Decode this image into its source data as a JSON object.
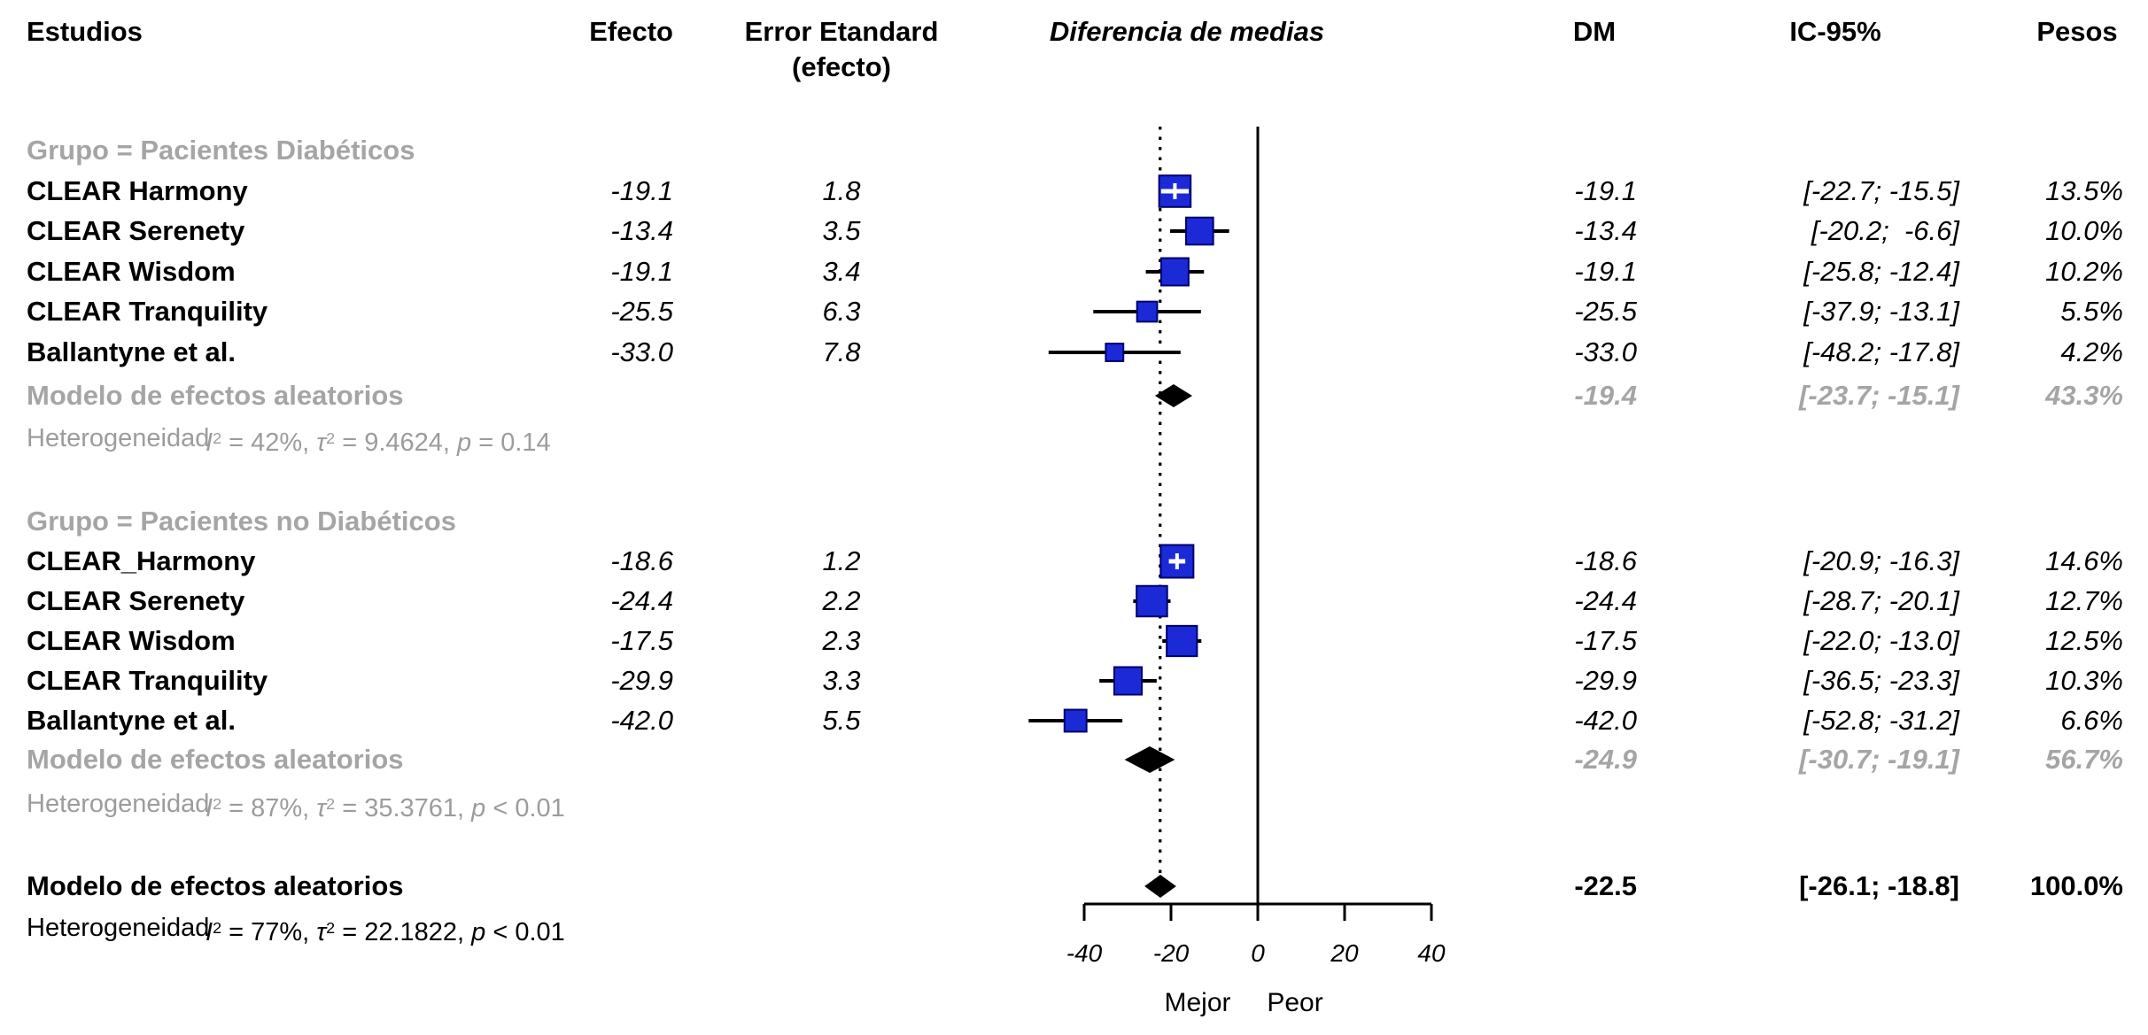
{
  "header": {
    "estudios": "Estudios",
    "efecto": "Efecto",
    "error_line1": "Error Etandard",
    "error_line2": "(efecto)",
    "diferencia": "Diferencia de medias",
    "dm": "DM",
    "ic": "IC-95%",
    "pesos": "Pesos"
  },
  "colors": {
    "square_fill": "#1B2AD6",
    "square_border": "#00006E",
    "summary_gray": "#a5a5a5",
    "het_gray": "#9c9c9c",
    "black": "#000000",
    "white": "#ffffff"
  },
  "chart_data": {
    "type": "forest",
    "x_axis": {
      "ticks": [
        -40,
        -20,
        0,
        20,
        40
      ],
      "tick_labels": [
        "-40",
        "-20",
        "0",
        "20",
        "40"
      ],
      "label_left": "Mejor",
      "label_right": "Peor",
      "range": [
        -40,
        40
      ]
    },
    "reference_line": 0,
    "dashed_line_at": -22.5,
    "groups": [
      {
        "label": "Grupo = Pacientes Diabéticos",
        "studies": [
          {
            "name": "CLEAR Harmony",
            "effect": "-19.1",
            "se": "1.8",
            "dm": -19.1,
            "ci_low": -22.7,
            "ci_high": -15.5,
            "dm_text": "-19.1",
            "ci_text": "[-22.7; -15.5]",
            "weight": 13.5,
            "weight_text": "13.5%"
          },
          {
            "name": "CLEAR Serenety",
            "effect": "-13.4",
            "se": "3.5",
            "dm": -13.4,
            "ci_low": -20.2,
            "ci_high": -6.6,
            "dm_text": "-13.4",
            "ci_text": "[-20.2;  -6.6]",
            "weight": 10.0,
            "weight_text": "10.0%"
          },
          {
            "name": "CLEAR Wisdom",
            "effect": "-19.1",
            "se": "3.4",
            "dm": -19.1,
            "ci_low": -25.8,
            "ci_high": -12.4,
            "dm_text": "-19.1",
            "ci_text": "[-25.8; -12.4]",
            "weight": 10.2,
            "weight_text": "10.2%"
          },
          {
            "name": "CLEAR Tranquility",
            "effect": "-25.5",
            "se": "6.3",
            "dm": -25.5,
            "ci_low": -37.9,
            "ci_high": -13.1,
            "dm_text": "-25.5",
            "ci_text": "[-37.9; -13.1]",
            "weight": 5.5,
            "weight_text": "5.5%"
          },
          {
            "name": "Ballantyne et al.",
            "effect": "-33.0",
            "se": "7.8",
            "dm": -33.0,
            "ci_low": -48.2,
            "ci_high": -17.8,
            "dm_text": "-33.0",
            "ci_text": "[-48.2; -17.8]",
            "weight": 4.2,
            "weight_text": "4.2%"
          }
        ],
        "summary": {
          "label": "Modelo de efectos aleatorios",
          "dm": -19.4,
          "ci_low": -23.7,
          "ci_high": -15.1,
          "dm_text": "-19.4",
          "ci_text": "[-23.7; -15.1]",
          "weight_text": "43.3%"
        },
        "heterogeneity": {
          "label": "Heterogeneidad",
          "formula": [
            {
              "t": "I",
              "s": "i"
            },
            {
              "t": "2",
              "s": "sup"
            },
            {
              "t": " = 42%, ",
              "s": "n"
            },
            {
              "t": "τ",
              "s": "i"
            },
            {
              "t": "2",
              "s": "sup"
            },
            {
              "t": " = 9.4624, ",
              "s": "n"
            },
            {
              "t": "p",
              "s": "i"
            },
            {
              "t": " = 0.14",
              "s": "n"
            }
          ]
        }
      },
      {
        "label": "Grupo = Pacientes no Diabéticos",
        "studies": [
          {
            "name": "CLEAR_Harmony",
            "effect": "-18.6",
            "se": "1.2",
            "dm": -18.6,
            "ci_low": -20.9,
            "ci_high": -16.3,
            "dm_text": "-18.6",
            "ci_text": "[-20.9; -16.3]",
            "weight": 14.6,
            "weight_text": "14.6%"
          },
          {
            "name": "CLEAR Serenety",
            "effect": "-24.4",
            "se": "2.2",
            "dm": -24.4,
            "ci_low": -28.7,
            "ci_high": -20.1,
            "dm_text": "-24.4",
            "ci_text": "[-28.7; -20.1]",
            "weight": 12.7,
            "weight_text": "12.7%"
          },
          {
            "name": "CLEAR Wisdom",
            "effect": "-17.5",
            "se": "2.3",
            "dm": -17.5,
            "ci_low": -22.0,
            "ci_high": -13.0,
            "dm_text": "-17.5",
            "ci_text": "[-22.0; -13.0]",
            "weight": 12.5,
            "weight_text": "12.5%"
          },
          {
            "name": "CLEAR Tranquility",
            "effect": "-29.9",
            "se": "3.3",
            "dm": -29.9,
            "ci_low": -36.5,
            "ci_high": -23.3,
            "dm_text": "-29.9",
            "ci_text": "[-36.5; -23.3]",
            "weight": 10.3,
            "weight_text": "10.3%"
          },
          {
            "name": "Ballantyne et al.",
            "effect": "-42.0",
            "se": "5.5",
            "dm": -42.0,
            "ci_low": -52.8,
            "ci_high": -31.2,
            "dm_text": "-42.0",
            "ci_text": "[-52.8; -31.2]",
            "weight": 6.6,
            "weight_text": "6.6%"
          }
        ],
        "summary": {
          "label": "Modelo de efectos aleatorios",
          "dm": -24.9,
          "ci_low": -30.7,
          "ci_high": -19.1,
          "dm_text": "-24.9",
          "ci_text": "[-30.7; -19.1]",
          "weight_text": "56.7%"
        },
        "heterogeneity": {
          "label": "Heterogeneidad",
          "formula": [
            {
              "t": "I",
              "s": "i"
            },
            {
              "t": "2",
              "s": "sup"
            },
            {
              "t": " = 87%, ",
              "s": "n"
            },
            {
              "t": "τ",
              "s": "i"
            },
            {
              "t": "2",
              "s": "sup"
            },
            {
              "t": " = 35.3761, ",
              "s": "n"
            },
            {
              "t": "p",
              "s": "i"
            },
            {
              "t": " < 0.01",
              "s": "n"
            }
          ]
        }
      }
    ],
    "overall": {
      "label": "Modelo de efectos aleatorios",
      "dm": -22.5,
      "ci_low": -26.1,
      "ci_high": -18.8,
      "dm_text": "-22.5",
      "ci_text": "[-26.1; -18.8]",
      "weight_text": "100.0%",
      "heterogeneity": {
        "label": "Heterogeneidad",
        "formula": [
          {
            "t": "I",
            "s": "i"
          },
          {
            "t": "2",
            "s": "sup"
          },
          {
            "t": " = 77%, ",
            "s": "n"
          },
          {
            "t": "τ",
            "s": "i"
          },
          {
            "t": "2",
            "s": "sup"
          },
          {
            "t": " = 22.1822, ",
            "s": "n"
          },
          {
            "t": "p",
            "s": "i"
          },
          {
            "t": " < 0.01",
            "s": "n"
          }
        ]
      }
    }
  }
}
